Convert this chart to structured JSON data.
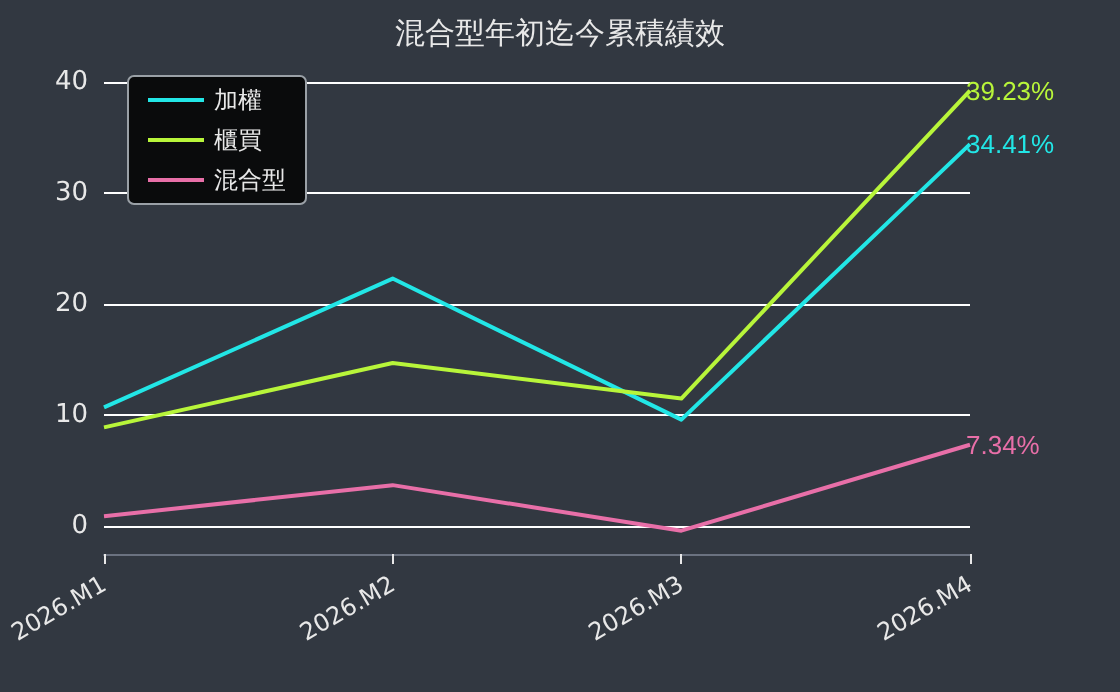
{
  "chart_data": {
    "type": "line",
    "title": "混合型年初迄今累積績效",
    "categories": [
      "2026.M1",
      "2026.M2",
      "2026.M3",
      "2026.M4"
    ],
    "series": [
      {
        "name": "加權",
        "color": "#22e6e6",
        "values": [
          10.7,
          22.3,
          9.6,
          34.41
        ],
        "value_labels": [
          null,
          null,
          null,
          "34.41%"
        ]
      },
      {
        "name": "櫃買",
        "color": "#b8f53a",
        "values": [
          8.9,
          14.7,
          11.5,
          39.23
        ],
        "value_labels": [
          null,
          null,
          null,
          "39.23%"
        ]
      },
      {
        "name": "混合型",
        "color": "#e86fa8",
        "values": [
          0.9,
          3.7,
          -0.4,
          7.34
        ],
        "value_labels": [
          null,
          null,
          null,
          "7.34%"
        ]
      }
    ],
    "ylim": [
      -2.5,
      40
    ],
    "yticks": [
      0,
      10,
      20,
      30,
      40
    ],
    "grid": "y",
    "legend": "top left",
    "marker": "none",
    "line_style": "solid"
  }
}
